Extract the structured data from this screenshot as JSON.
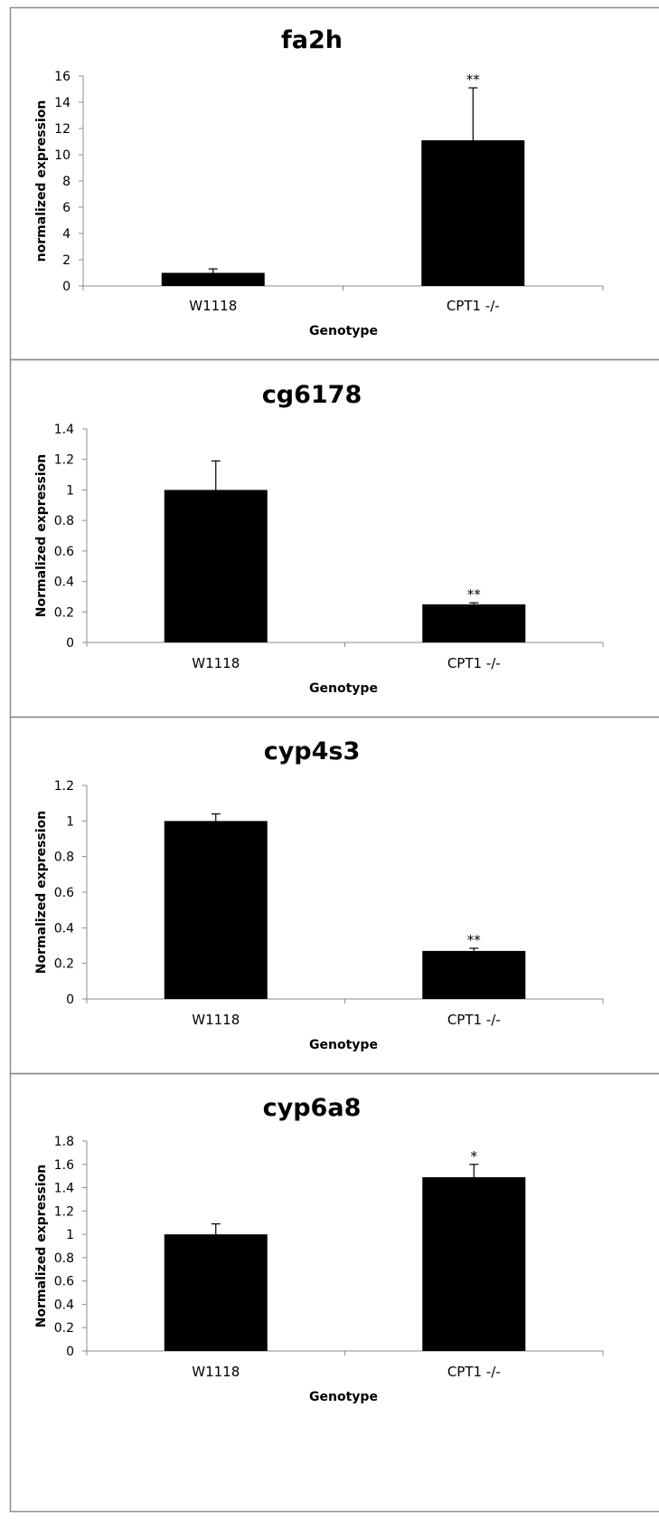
{
  "chart_data": [
    {
      "type": "bar",
      "title": "fa2h",
      "xlabel": "Genotype",
      "ylabel": "normalized expression",
      "categories": [
        "W1118",
        "CPT1 -/-"
      ],
      "values": [
        1.0,
        11.1
      ],
      "error": [
        0.3,
        4.0
      ],
      "significance": [
        "",
        "**"
      ],
      "ylim": [
        0,
        16
      ],
      "yticks": [
        "0",
        "2",
        "4",
        "6",
        "8",
        "10",
        "12",
        "14",
        "16"
      ],
      "ytick_values": [
        0,
        2,
        4,
        6,
        8,
        10,
        12,
        14,
        16
      ],
      "bar_color": "#000000",
      "grid": false,
      "legend": "none"
    },
    {
      "type": "bar",
      "title": "cg6178",
      "xlabel": "Genotype",
      "ylabel": "Normalized expression",
      "categories": [
        "W1118",
        "CPT1 -/-"
      ],
      "values": [
        1.0,
        0.25
      ],
      "error": [
        0.19,
        0.01
      ],
      "significance": [
        "",
        "**"
      ],
      "ylim": [
        0,
        1.4
      ],
      "yticks": [
        "0",
        "0.2",
        "0.4",
        "0.6",
        "0.8",
        "1",
        "1.2",
        "1.4"
      ],
      "ytick_values": [
        0,
        0.2,
        0.4,
        0.6,
        0.8,
        1.0,
        1.2,
        1.4
      ],
      "bar_color": "#000000",
      "grid": false,
      "legend": "none"
    },
    {
      "type": "bar",
      "title": "cyp4s3",
      "xlabel": "Genotype",
      "ylabel": "Normalized expression",
      "categories": [
        "W1118",
        "CPT1 -/-"
      ],
      "values": [
        1.0,
        0.27
      ],
      "error": [
        0.04,
        0.015
      ],
      "significance": [
        "",
        "**"
      ],
      "ylim": [
        0,
        1.2
      ],
      "yticks": [
        "0",
        "0.2",
        "0.4",
        "0.6",
        "0.8",
        "1",
        "1.2"
      ],
      "ytick_values": [
        0,
        0.2,
        0.4,
        0.6,
        0.8,
        1.0,
        1.2
      ],
      "bar_color": "#000000",
      "grid": false,
      "legend": "none"
    },
    {
      "type": "bar",
      "title": "cyp6a8",
      "xlabel": "Genotype",
      "ylabel": "Normalized expression",
      "categories": [
        "W1118",
        "CPT1 -/-"
      ],
      "values": [
        1.0,
        1.49
      ],
      "error": [
        0.09,
        0.11
      ],
      "significance": [
        "",
        "*"
      ],
      "ylim": [
        0,
        1.8
      ],
      "yticks": [
        "0",
        "0.2",
        "0.4",
        "0.6",
        "0.8",
        "1",
        "1.2",
        "1.4",
        "1.6",
        "1.8"
      ],
      "ytick_values": [
        0,
        0.2,
        0.4,
        0.6,
        0.8,
        1.0,
        1.2,
        1.4,
        1.6,
        1.8
      ],
      "bar_color": "#000000",
      "grid": false,
      "legend": "none"
    }
  ]
}
